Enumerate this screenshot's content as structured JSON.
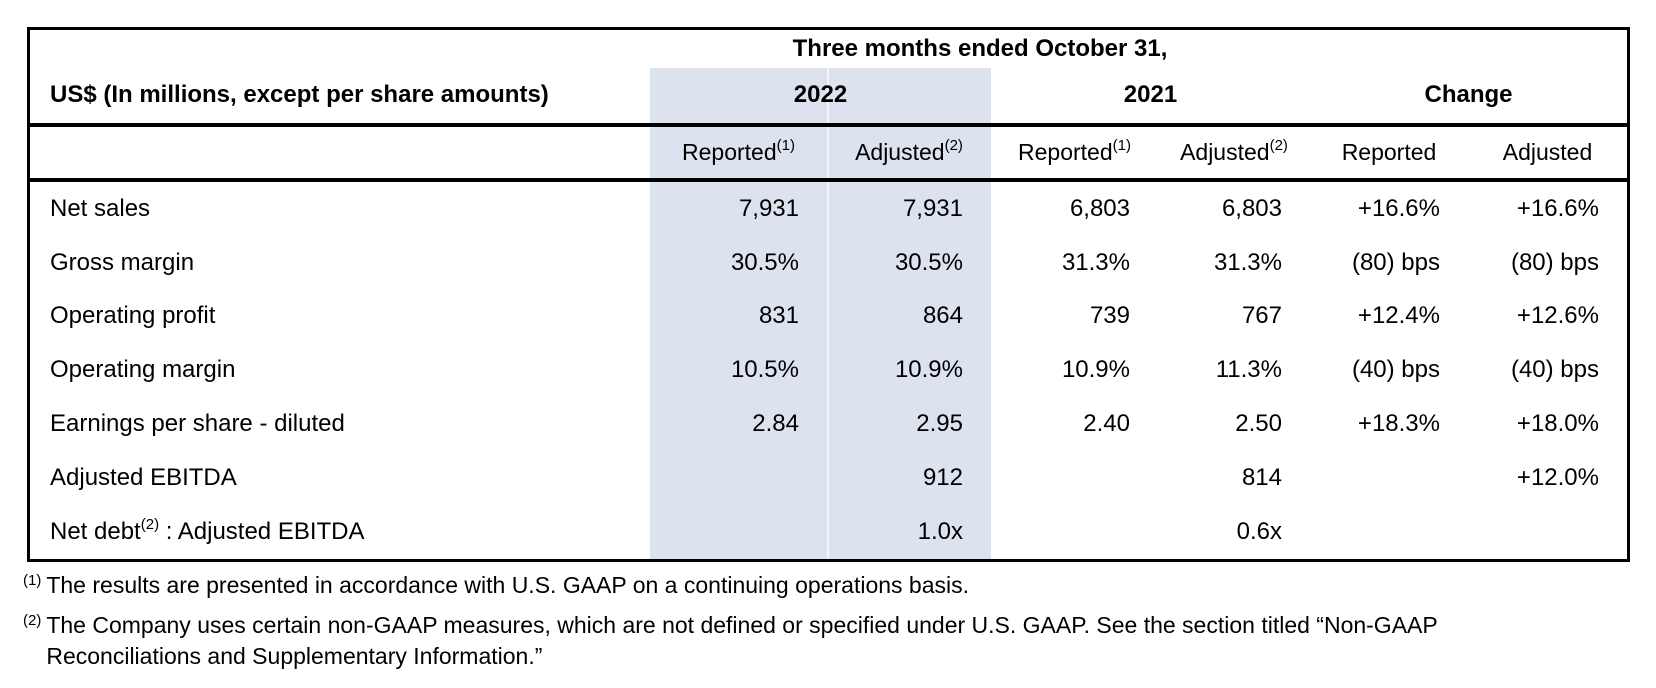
{
  "table": {
    "title": "Three months ended October 31,",
    "unit_label": "US$ (In millions, except per share amounts)",
    "col_groups": [
      {
        "label": "2022",
        "highlighted": true
      },
      {
        "label": "2021",
        "highlighted": false
      },
      {
        "label": "Change",
        "highlighted": false
      }
    ],
    "sub_headers": [
      {
        "label": "Reported",
        "sup": "(1)"
      },
      {
        "label": "Adjusted",
        "sup": "(2)"
      },
      {
        "label": "Reported",
        "sup": "(1)"
      },
      {
        "label": "Adjusted",
        "sup": "(2)"
      },
      {
        "label": "Reported",
        "sup": ""
      },
      {
        "label": "Adjusted",
        "sup": ""
      }
    ],
    "rows": [
      {
        "label_pre": "Net sales",
        "label_sup": "",
        "label_post": "",
        "values": [
          "7,931",
          "7,931",
          "6,803",
          "6,803",
          "+16.6%",
          "+16.6%"
        ]
      },
      {
        "label_pre": "Gross margin",
        "label_sup": "",
        "label_post": "",
        "values": [
          "30.5%",
          "30.5%",
          "31.3%",
          "31.3%",
          "(80) bps",
          "(80) bps"
        ]
      },
      {
        "label_pre": "Operating profit",
        "label_sup": "",
        "label_post": "",
        "values": [
          "831",
          "864",
          "739",
          "767",
          "+12.4%",
          "+12.6%"
        ]
      },
      {
        "label_pre": "Operating margin",
        "label_sup": "",
        "label_post": "",
        "values": [
          "10.5%",
          "10.9%",
          "10.9%",
          "11.3%",
          "(40) bps",
          "(40) bps"
        ]
      },
      {
        "label_pre": "Earnings per share - diluted",
        "label_sup": "",
        "label_post": "",
        "values": [
          "2.84",
          "2.95",
          "2.40",
          "2.50",
          "+18.3%",
          "+18.0%"
        ]
      },
      {
        "label_pre": "Adjusted EBITDA",
        "label_sup": "",
        "label_post": "",
        "values": [
          "",
          "912",
          "",
          "814",
          "",
          "+12.0%"
        ]
      },
      {
        "label_pre": "Net debt",
        "label_sup": "(2)",
        "label_post": " : Adjusted EBITDA",
        "values": [
          "",
          "1.0x",
          "",
          "0.6x",
          "",
          ""
        ]
      }
    ]
  },
  "footnotes": [
    {
      "sup": "(1)",
      "lines": [
        "The results are presented in accordance with U.S. GAAP on a continuing operations basis."
      ]
    },
    {
      "sup": "(2)",
      "lines": [
        "The Company uses certain non-GAAP measures, which are not defined or specified under U.S. GAAP. See the section titled “Non-GAAP",
        "Reconciliations and Supplementary Information.”"
      ]
    }
  ],
  "colors": {
    "highlight": "#dce3ef",
    "border": "#000000",
    "text": "#000000"
  }
}
